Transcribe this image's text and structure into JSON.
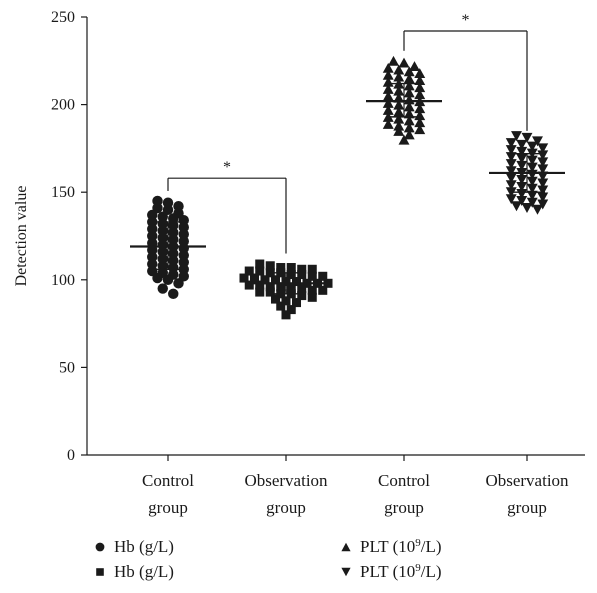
{
  "chart_data": {
    "type": "scatter",
    "ylabel": "Detection value",
    "ylim": [
      0,
      250
    ],
    "yticks": [
      0,
      50,
      100,
      150,
      200,
      250
    ],
    "categories": [
      {
        "line1": "Control",
        "line2": "group"
      },
      {
        "line1": "Observation",
        "line2": "group"
      },
      {
        "line1": "Control",
        "line2": "group"
      },
      {
        "line1": "Observation",
        "line2": "group"
      }
    ],
    "series": [
      {
        "name": "Hb (g/L)",
        "marker": "circle",
        "category_index": 0,
        "mean": 119,
        "sd_low": 106,
        "sd_high": 133,
        "values": [
          145,
          144,
          142,
          141,
          140,
          138,
          137,
          136,
          135,
          134,
          133,
          132,
          131,
          130,
          129,
          128,
          127,
          126,
          125,
          124,
          123,
          122,
          121,
          120,
          119,
          118,
          117,
          116,
          115,
          114,
          113,
          112,
          111,
          110,
          109,
          108,
          107,
          106,
          105,
          104,
          103,
          102,
          101,
          100,
          98,
          95,
          92
        ]
      },
      {
        "name": "Hb (g/L)",
        "marker": "square",
        "category_index": 1,
        "mean": 98,
        "sd_low": 92,
        "sd_high": 104,
        "values": [
          109,
          108,
          107,
          107,
          106,
          106,
          105,
          105,
          104,
          104,
          103,
          103,
          102,
          102,
          101,
          101,
          100,
          100,
          99,
          99,
          98,
          98,
          98,
          97,
          97,
          96,
          96,
          95,
          95,
          94,
          94,
          93,
          93,
          92,
          92,
          91,
          90,
          89,
          88,
          87,
          85,
          83,
          80
        ]
      },
      {
        "name": "PLT (10^9/L)",
        "marker": "triangle-up",
        "category_index": 2,
        "mean": 202,
        "sd_low": 193,
        "sd_high": 212,
        "values": [
          225,
          224,
          222,
          221,
          220,
          219,
          218,
          217,
          216,
          215,
          214,
          213,
          212,
          211,
          210,
          209,
          208,
          207,
          206,
          205,
          204,
          203,
          202,
          201,
          200,
          199,
          198,
          197,
          196,
          195,
          194,
          193,
          192,
          191,
          190,
          189,
          188,
          187,
          186,
          185,
          183,
          180
        ]
      },
      {
        "name": "PLT (10^9/L)",
        "marker": "triangle-down",
        "category_index": 3,
        "mean": 161,
        "sd_low": 150,
        "sd_high": 172,
        "values": [
          182,
          181,
          179,
          178,
          177,
          176,
          175,
          174,
          173,
          172,
          171,
          170,
          169,
          168,
          167,
          166,
          165,
          164,
          163,
          162,
          161,
          160,
          159,
          158,
          157,
          156,
          155,
          154,
          153,
          152,
          151,
          150,
          149,
          148,
          147,
          146,
          145,
          144,
          143,
          142,
          141,
          140
        ]
      }
    ],
    "comparisons": [
      {
        "from": 0,
        "to": 1,
        "label": "*",
        "level": 158
      },
      {
        "from": 2,
        "to": 3,
        "label": "*",
        "level": 242
      }
    ],
    "legend": {
      "items": [
        {
          "marker": "circle",
          "label": "Hb (g/L)"
        },
        {
          "marker": "square",
          "label": "Hb (g/L)"
        },
        {
          "marker": "triangle-up",
          "label_prefix": "PLT (10",
          "label_sup": "9",
          "label_suffix": "/L)"
        },
        {
          "marker": "triangle-down",
          "label_prefix": "PLT (10",
          "label_sup": "9",
          "label_suffix": "/L)"
        }
      ],
      "position": "bottom"
    },
    "marker_color": "#1a1a1a"
  }
}
